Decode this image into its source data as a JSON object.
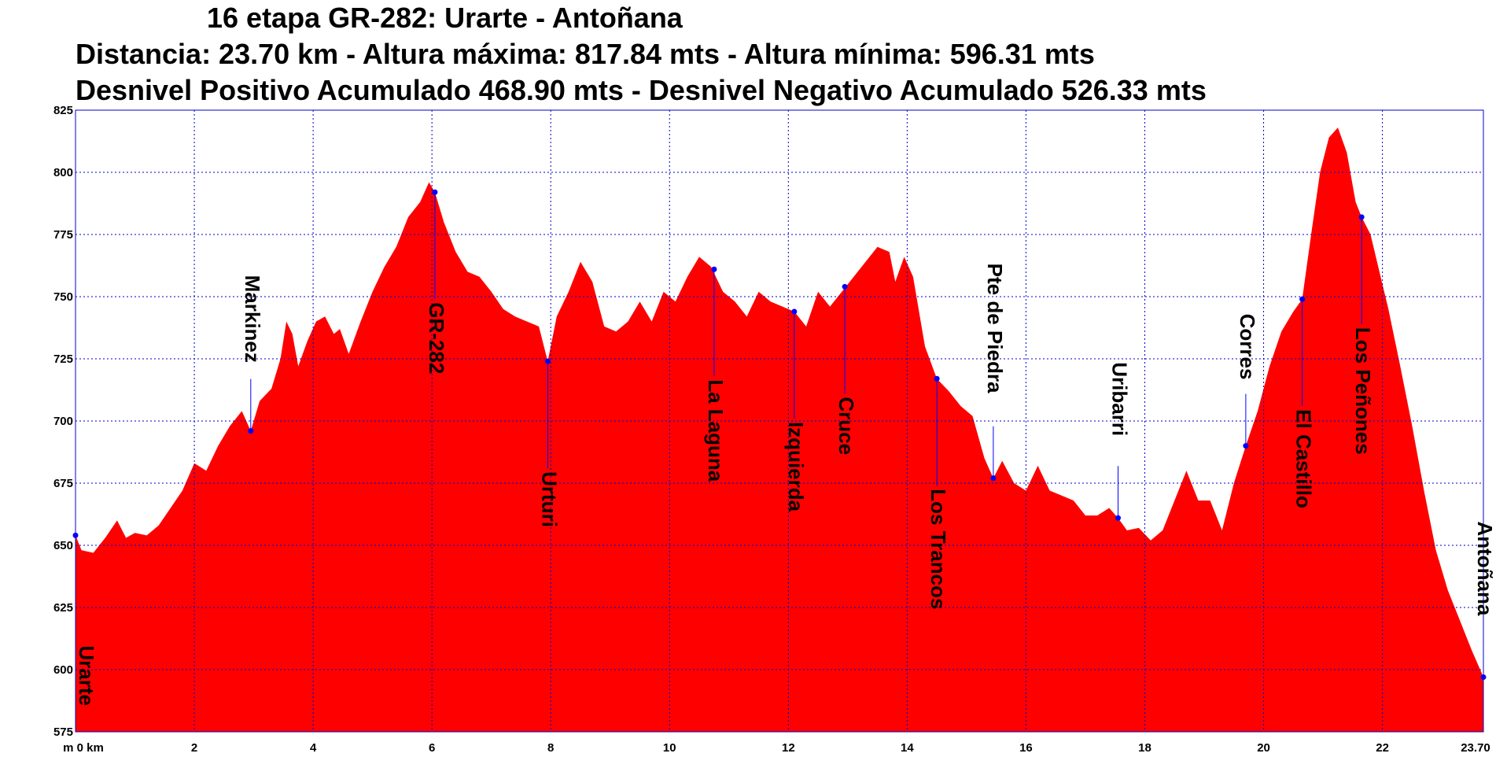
{
  "chart_data": {
    "type": "area",
    "title": "16 etapa GR-282: Urarte - Antoñana",
    "subtitle_lines": [
      "Distancia: 23.70 km - Altura máxima: 817.84 mts - Altura mínima: 596.31 mts",
      "Desnivel Positivo Acumulado 468.90 mts - Desnivel Negativo Acumulado 526.33 mts"
    ],
    "x_axis": {
      "min": 0,
      "max": 23.7,
      "ticks": [
        0,
        2,
        4,
        6,
        8,
        10,
        12,
        14,
        16,
        18,
        20,
        22,
        23.7
      ],
      "tick_labels": [
        "m 0 km",
        "2",
        "4",
        "6",
        "8",
        "10",
        "12",
        "14",
        "16",
        "18",
        "20",
        "22",
        "23.70"
      ]
    },
    "y_axis": {
      "min": 575,
      "max": 825,
      "ticks": [
        575,
        600,
        625,
        650,
        675,
        700,
        725,
        750,
        775,
        800,
        825
      ],
      "tick_labels": [
        "575",
        "600",
        "625",
        "650",
        "675",
        "700",
        "725",
        "750",
        "775",
        "800",
        "825"
      ]
    },
    "grid": true,
    "fill_color": "#ff0000",
    "grid_color": "#0000cc",
    "marker_color": "#0000ff",
    "profile": [
      [
        0.0,
        654
      ],
      [
        0.1,
        648
      ],
      [
        0.3,
        647
      ],
      [
        0.5,
        653
      ],
      [
        0.7,
        660
      ],
      [
        0.85,
        653
      ],
      [
        1.0,
        655
      ],
      [
        1.2,
        654
      ],
      [
        1.4,
        658
      ],
      [
        1.6,
        665
      ],
      [
        1.8,
        672
      ],
      [
        2.0,
        683
      ],
      [
        2.2,
        680
      ],
      [
        2.4,
        690
      ],
      [
        2.6,
        698
      ],
      [
        2.8,
        704
      ],
      [
        2.95,
        696
      ],
      [
        3.1,
        708
      ],
      [
        3.3,
        713
      ],
      [
        3.45,
        725
      ],
      [
        3.55,
        740
      ],
      [
        3.65,
        735
      ],
      [
        3.75,
        722
      ],
      [
        3.9,
        732
      ],
      [
        4.05,
        740
      ],
      [
        4.2,
        742
      ],
      [
        4.35,
        735
      ],
      [
        4.45,
        737
      ],
      [
        4.6,
        727
      ],
      [
        4.8,
        740
      ],
      [
        5.0,
        752
      ],
      [
        5.2,
        762
      ],
      [
        5.4,
        770
      ],
      [
        5.6,
        782
      ],
      [
        5.8,
        788
      ],
      [
        5.95,
        796
      ],
      [
        6.05,
        792
      ],
      [
        6.2,
        780
      ],
      [
        6.4,
        768
      ],
      [
        6.6,
        760
      ],
      [
        6.8,
        758
      ],
      [
        7.0,
        752
      ],
      [
        7.2,
        745
      ],
      [
        7.4,
        742
      ],
      [
        7.6,
        740
      ],
      [
        7.8,
        738
      ],
      [
        7.95,
        724
      ],
      [
        8.1,
        742
      ],
      [
        8.3,
        752
      ],
      [
        8.5,
        764
      ],
      [
        8.7,
        756
      ],
      [
        8.9,
        738
      ],
      [
        9.1,
        736
      ],
      [
        9.3,
        740
      ],
      [
        9.5,
        748
      ],
      [
        9.7,
        740
      ],
      [
        9.9,
        752
      ],
      [
        10.1,
        748
      ],
      [
        10.3,
        758
      ],
      [
        10.5,
        766
      ],
      [
        10.7,
        762
      ],
      [
        10.9,
        752
      ],
      [
        11.1,
        748
      ],
      [
        11.3,
        742
      ],
      [
        11.5,
        752
      ],
      [
        11.7,
        748
      ],
      [
        11.9,
        746
      ],
      [
        12.1,
        744
      ],
      [
        12.3,
        738
      ],
      [
        12.5,
        752
      ],
      [
        12.7,
        746
      ],
      [
        12.9,
        752
      ],
      [
        13.1,
        758
      ],
      [
        13.3,
        764
      ],
      [
        13.5,
        770
      ],
      [
        13.7,
        768
      ],
      [
        13.8,
        756
      ],
      [
        13.95,
        766
      ],
      [
        14.1,
        758
      ],
      [
        14.3,
        730
      ],
      [
        14.5,
        717
      ],
      [
        14.7,
        712
      ],
      [
        14.9,
        706
      ],
      [
        15.1,
        702
      ],
      [
        15.3,
        685
      ],
      [
        15.45,
        677
      ],
      [
        15.6,
        684
      ],
      [
        15.8,
        675
      ],
      [
        16.0,
        672
      ],
      [
        16.2,
        682
      ],
      [
        16.4,
        672
      ],
      [
        16.6,
        670
      ],
      [
        16.8,
        668
      ],
      [
        17.0,
        662
      ],
      [
        17.2,
        662
      ],
      [
        17.4,
        665
      ],
      [
        17.55,
        661
      ],
      [
        17.7,
        656
      ],
      [
        17.9,
        657
      ],
      [
        18.1,
        652
      ],
      [
        18.3,
        656
      ],
      [
        18.5,
        668
      ],
      [
        18.7,
        680
      ],
      [
        18.9,
        668
      ],
      [
        19.1,
        668
      ],
      [
        19.3,
        656
      ],
      [
        19.5,
        675
      ],
      [
        19.7,
        690
      ],
      [
        19.9,
        704
      ],
      [
        20.1,
        722
      ],
      [
        20.3,
        736
      ],
      [
        20.5,
        744
      ],
      [
        20.65,
        749
      ],
      [
        20.8,
        775
      ],
      [
        20.95,
        800
      ],
      [
        21.1,
        814
      ],
      [
        21.25,
        818
      ],
      [
        21.4,
        808
      ],
      [
        21.55,
        788
      ],
      [
        21.65,
        782
      ],
      [
        21.8,
        775
      ],
      [
        21.95,
        760
      ],
      [
        22.1,
        745
      ],
      [
        22.3,
        722
      ],
      [
        22.5,
        698
      ],
      [
        22.7,
        672
      ],
      [
        22.9,
        648
      ],
      [
        23.1,
        632
      ],
      [
        23.3,
        620
      ],
      [
        23.5,
        608
      ],
      [
        23.7,
        597
      ]
    ],
    "waypoints": [
      {
        "name": "Urarte",
        "x": 0.0,
        "y": 654,
        "side": "below"
      },
      {
        "name": "Markinez",
        "x": 2.95,
        "y": 696,
        "side": "above"
      },
      {
        "name": "GR-282",
        "x": 6.05,
        "y": 792,
        "side": "below"
      },
      {
        "name": "Urturi",
        "x": 7.95,
        "y": 724,
        "side": "below"
      },
      {
        "name": "La Laguna",
        "x": 10.75,
        "y": 761,
        "side": "below"
      },
      {
        "name": "Izquierda",
        "x": 12.1,
        "y": 744,
        "side": "below"
      },
      {
        "name": "Cruce",
        "x": 12.95,
        "y": 754,
        "side": "below"
      },
      {
        "name": "Los Trancos",
        "x": 14.5,
        "y": 717,
        "side": "below"
      },
      {
        "name": "Pte de Piedra",
        "x": 15.45,
        "y": 677,
        "side": "above"
      },
      {
        "name": "Uribarri",
        "x": 17.55,
        "y": 661,
        "side": "above"
      },
      {
        "name": "Corres",
        "x": 19.7,
        "y": 690,
        "side": "above"
      },
      {
        "name": "El Castillo",
        "x": 20.65,
        "y": 749,
        "side": "below"
      },
      {
        "name": "Los Peñones",
        "x": 21.65,
        "y": 782,
        "side": "below"
      },
      {
        "name": "Antoñana",
        "x": 23.7,
        "y": 597,
        "side": "above"
      }
    ]
  }
}
